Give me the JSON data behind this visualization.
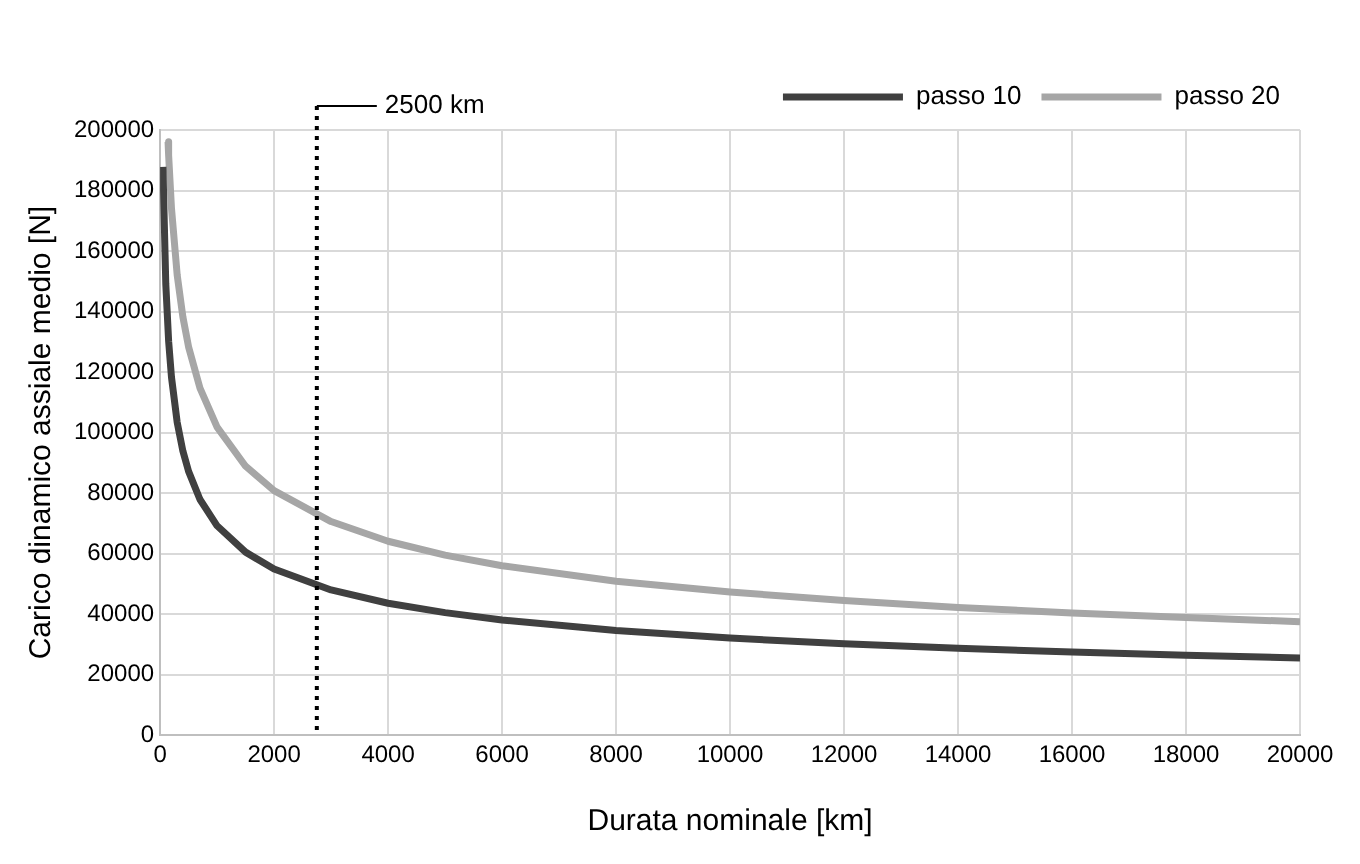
{
  "chart_data": {
    "type": "line",
    "xlabel": "Durata nominale [km]",
    "ylabel": "Carico dinamico assiale medio [N]",
    "xlim": [
      0,
      20000
    ],
    "xticks": [
      0,
      2000,
      4000,
      6000,
      8000,
      10000,
      12000,
      14000,
      16000,
      18000,
      20000
    ],
    "ylim": [
      0,
      200000
    ],
    "yticks": [
      0,
      20000,
      40000,
      60000,
      80000,
      100000,
      120000,
      140000,
      160000,
      180000,
      200000
    ],
    "grid": true,
    "legend": "top right",
    "marker": "none",
    "line_style": "solid",
    "ref_lines": [
      {
        "axis": "x",
        "value": 2750,
        "label": "2500 km",
        "color": "#000000",
        "line_style": "dotted"
      }
    ],
    "series": [
      {
        "name": "passo 10",
        "color": "#404040",
        "x": [
          50,
          100,
          150,
          200,
          300,
          400,
          500,
          700,
          1000,
          1500,
          2000,
          3000,
          4000,
          5000,
          6000,
          8000,
          10000,
          12000,
          14000,
          16000,
          18000,
          20000
        ],
        "values": [
          187800,
          149100,
          130200,
          118300,
          103400,
          93900,
          87200,
          77900,
          69200,
          60500,
          54900,
          48000,
          43600,
          40500,
          38100,
          34600,
          32100,
          30200,
          28700,
          27500,
          26400,
          25500
        ]
      },
      {
        "name": "passo 20",
        "color": "#a6a6a6",
        "x": [
          140,
          150,
          200,
          300,
          400,
          500,
          700,
          1000,
          1500,
          2000,
          3000,
          4000,
          5000,
          6000,
          8000,
          10000,
          12000,
          14000,
          16000,
          18000,
          20000
        ],
        "values": [
          196100,
          191600,
          174100,
          152100,
          138200,
          128300,
          114700,
          101800,
          88900,
          80800,
          70600,
          64100,
          59500,
          56000,
          50900,
          47300,
          44500,
          42200,
          40400,
          38900,
          37500
        ]
      }
    ]
  }
}
